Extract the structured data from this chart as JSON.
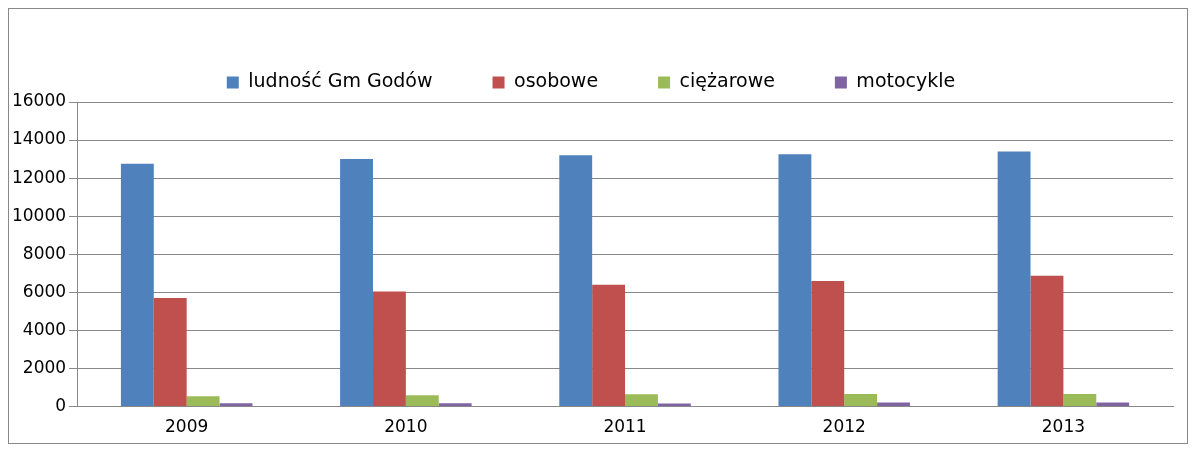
{
  "chart_data": {
    "type": "bar",
    "categories": [
      "2009",
      "2010",
      "2011",
      "2012",
      "2013"
    ],
    "series": [
      {
        "name": "ludność Gm Godów",
        "color": "#4f81bd",
        "values": [
          12750,
          13000,
          13200,
          13250,
          13400
        ]
      },
      {
        "name": "osobowe",
        "color": "#c0504d",
        "values": [
          5700,
          6050,
          6400,
          6600,
          6870
        ]
      },
      {
        "name": "ciężarowe",
        "color": "#9bbb59",
        "values": [
          550,
          600,
          650,
          660,
          660
        ]
      },
      {
        "name": "motocykle",
        "color": "#8064a2",
        "values": [
          170,
          170,
          160,
          220,
          220
        ]
      }
    ],
    "ylim": [
      0,
      16000
    ],
    "yticks": [
      0,
      2000,
      4000,
      6000,
      8000,
      10000,
      12000,
      14000,
      16000
    ],
    "grid": "y",
    "legend": "top"
  }
}
